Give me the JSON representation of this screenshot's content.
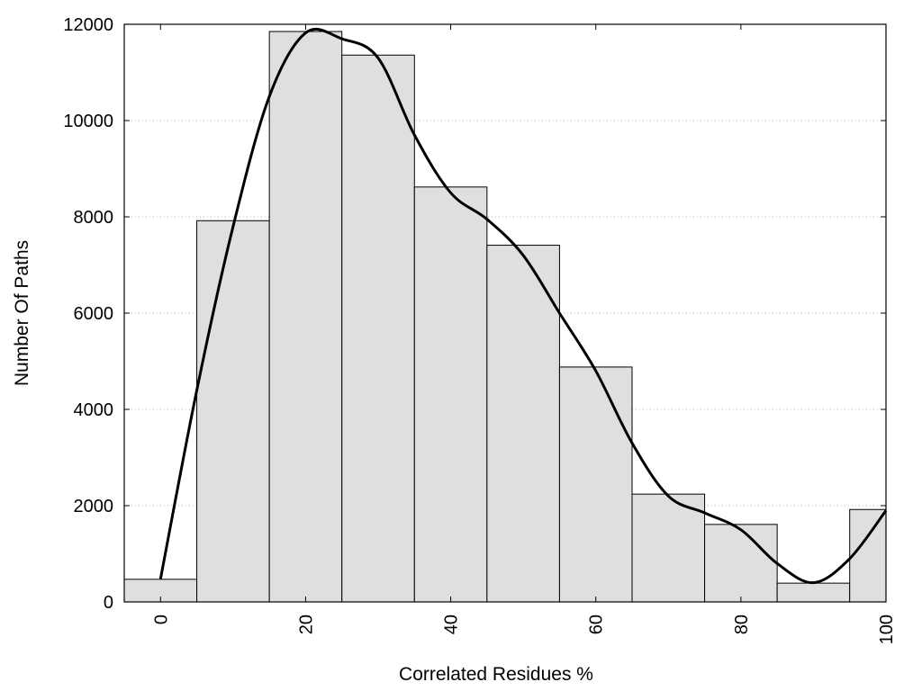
{
  "chart_data": {
    "type": "bar",
    "xlabel": "Correlated Residues %",
    "ylabel": "Number Of Paths",
    "xlim": [
      -5,
      100
    ],
    "ylim": [
      0,
      12000
    ],
    "x_ticks": [
      0,
      20,
      40,
      60,
      80,
      100
    ],
    "y_ticks": [
      0,
      2000,
      4000,
      6000,
      8000,
      10000,
      12000
    ],
    "grid": "horizontal dotted",
    "bin_width": 10,
    "bar_color": "#dfdfdf",
    "bins": [
      {
        "x": 0,
        "value": 470
      },
      {
        "x": 10,
        "value": 7920
      },
      {
        "x": 20,
        "value": 11850
      },
      {
        "x": 30,
        "value": 11360
      },
      {
        "x": 40,
        "value": 8620
      },
      {
        "x": 50,
        "value": 7410
      },
      {
        "x": 60,
        "value": 4880
      },
      {
        "x": 70,
        "value": 2240
      },
      {
        "x": 80,
        "value": 1610
      },
      {
        "x": 90,
        "value": 390
      },
      {
        "x": 100,
        "value": 1920
      }
    ],
    "density_curve": {
      "x": [
        0,
        5,
        10,
        15,
        20,
        25,
        30,
        35,
        40,
        45,
        50,
        55,
        60,
        65,
        70,
        75,
        80,
        85,
        90,
        95,
        100
      ],
      "y": [
        480,
        4400,
        7800,
        10500,
        11820,
        11700,
        11300,
        9700,
        8500,
        7950,
        7200,
        6000,
        4800,
        3300,
        2200,
        1850,
        1500,
        800,
        400,
        900,
        1900
      ]
    }
  }
}
